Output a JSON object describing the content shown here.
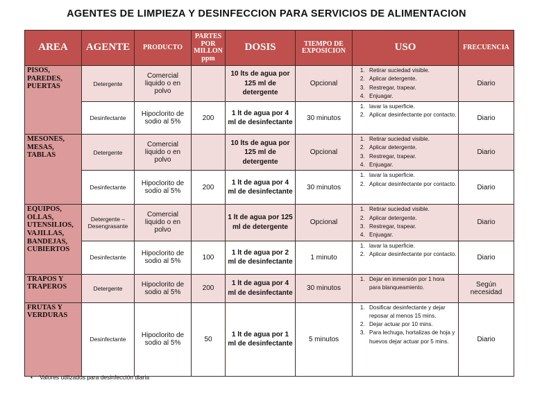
{
  "title": "AGENTES DE LIMPIEZA Y DESINFECCION PARA SERVICIOS DE ALIMENTACION",
  "table": {
    "headers": [
      "AREA",
      "AGENTE",
      "PRODUCTO",
      "PARTES POR MILLON ppm",
      "DOSIS",
      "TIEMPO DE EXPOSICION",
      "USO",
      "FRECUENCIA"
    ],
    "groups": [
      {
        "area": "PISOS, PAREDES, PUERTAS",
        "rows": [
          {
            "agente": "Detergente",
            "producto": "Comercial liquido o en polvo",
            "dosis": "10 lts de agua por 125 ml de detergente",
            "tiempo": "Opcional",
            "uso": [
              "Retirar suciedad visible.",
              "Aplicar detergente.",
              "Restregar, trapear.",
              "Enjuagar."
            ],
            "frecuencia": "Diario"
          },
          {
            "agente": "Desinfectante",
            "producto": "Hipoclorito de sodio al 5%",
            "ppm": 200,
            "dosis": "1 lt de agua por 4 ml de desinfectante",
            "tiempo": "30 minutos",
            "uso": [
              "lavar la superficie.",
              "Aplicar desinfectante por contacto."
            ],
            "frecuencia": "Diario"
          }
        ]
      },
      {
        "area": "MESONES, MESAS, TABLAS",
        "rows": [
          {
            "agente": "Detergente",
            "producto": "Comercial liquido o en polvo",
            "dosis": "10 lts de agua por 125 ml de detergente",
            "tiempo": "Opcional",
            "uso": [
              "Retirar suciedad visible.",
              "Aplicar detergente.",
              "Restregar, trapear.",
              "Enjuagar."
            ],
            "frecuencia": "Diario"
          },
          {
            "agente": "Desinfectante",
            "producto": "Hipoclorito de sodio al 5%",
            "ppm": 200,
            "dosis": "1 lt de agua por 4 ml de desinfectante",
            "tiempo": "30 minutos",
            "uso": [
              "lavar la superficie.",
              "Aplicar desinfectante por contacto."
            ],
            "frecuencia": "Diario"
          }
        ]
      },
      {
        "area": "EQUIPOS, OLLAS, UTENSILIOS, VAJILLAS, BANDEJAS, CUBIERTOS",
        "rows": [
          {
            "agente": "Detergente – Desengrasante",
            "producto": "Comercial liquido o en polvo",
            "dosis": "1 lt de agua por 125 ml de detergente",
            "tiempo": "Opcional",
            "uso": [
              "Retirar suciedad visible.",
              "Aplicar detergente.",
              "Restregar, trapear.",
              "Enjuagar."
            ],
            "frecuencia": "Diario"
          },
          {
            "agente": "Desinfectante",
            "producto": "Hipoclorito de sodio al 5%",
            "ppm": 100,
            "dosis": "1 lt de agua por 2 ml de desinfectante",
            "tiempo": "1 minuto",
            "uso": [
              "lavar la superficie.",
              "Aplicar desinfectante por contacto."
            ],
            "frecuencia": "Diario"
          }
        ]
      },
      {
        "area": "TRAPOS Y TRAPEROS",
        "rows": [
          {
            "agente": "Detergente",
            "producto": "Hipoclorito de sodio al 5%",
            "ppm": 200,
            "dosis": "1 lt de agua por 4 ml de desinfectante",
            "tiempo": "30 minutos",
            "uso": [
              "Dejar en inmersión por 1 hora para blanqueamiento."
            ],
            "frecuencia": "Según necesidad"
          }
        ]
      },
      {
        "area": "FRUTAS Y VERDURAS",
        "rows": [
          {
            "agente": "Desinfectante",
            "producto": "Hipoclorito de sodio al 5%",
            "ppm": 50,
            "dosis": "1 lt de agua por 1 ml de desinfectante",
            "tiempo": "5 minutos",
            "uso": [
              "Dosificar desinfectante y dejar reposar al menos 15 mins.",
              "Dejar actuar por 10 mins.",
              "Para lechuga, hortalizas de hoja y huevos dejar actuar por 5 mins."
            ],
            "frecuencia": "Diario"
          }
        ]
      }
    ]
  },
  "note": "Valores utilizados para desinfección diaria"
}
